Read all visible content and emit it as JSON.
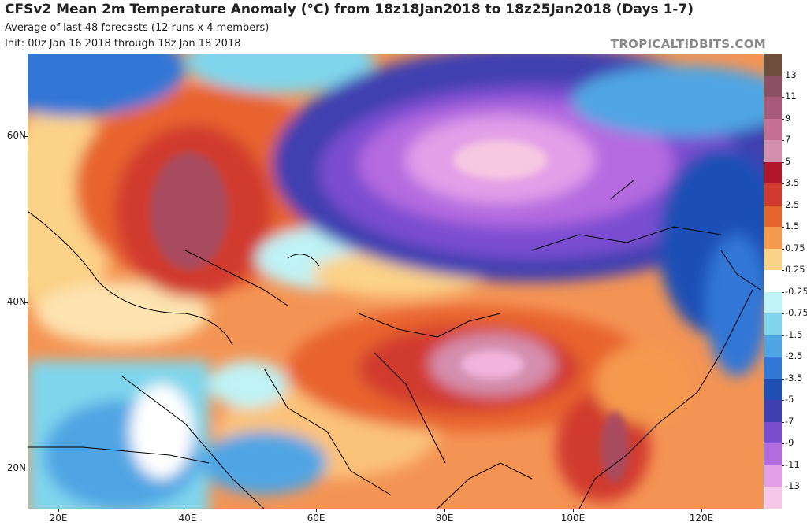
{
  "header": {
    "title": "CFSv2 Mean 2m Temperature Anomaly (°C) from 18z18Jan2018 to 18z25Jan2018 (Days 1-7)",
    "subtitle": "Average of last 48 forecasts (12 runs x 4 members)",
    "init": "Init: 00z Jan 16 2018 through 18z Jan 18 2018",
    "brand": "TROPICALTIDBITS.COM"
  },
  "axes": {
    "lat_labels": [
      "60N",
      "40N",
      "20N"
    ],
    "lon_labels": [
      "20E",
      "40E",
      "60E",
      "80E",
      "100E",
      "120E"
    ]
  },
  "colorbar": {
    "labels": [
      "13",
      "11",
      "9",
      "7",
      "5",
      "3.5",
      "2.5",
      "1.5",
      "0.75",
      "0.25",
      "-0.25",
      "-0.75",
      "-1.5",
      "-2.5",
      "-3.5",
      "-5",
      "-7",
      "-9",
      "-11",
      "-13"
    ],
    "colors": [
      "#6e4e3a",
      "#8c4f63",
      "#a8597a",
      "#c56f94",
      "#d48fae",
      "#b3162b",
      "#d13a2e",
      "#e8642f",
      "#f59a4d",
      "#fcd188",
      "#ffffff",
      "#bff3f5",
      "#7fd6ec",
      "#4fa5e3",
      "#3377d6",
      "#1f4fb5",
      "#3f3fb0",
      "#7b4ed0",
      "#b56be0",
      "#e39fe8",
      "#f6c7e6"
    ]
  },
  "regions": {
    "cold_core_siberia": "#f7c8e1",
    "warm_core_russia": "#a94b5e",
    "warm_core_tibet": "#f2b3dd"
  }
}
